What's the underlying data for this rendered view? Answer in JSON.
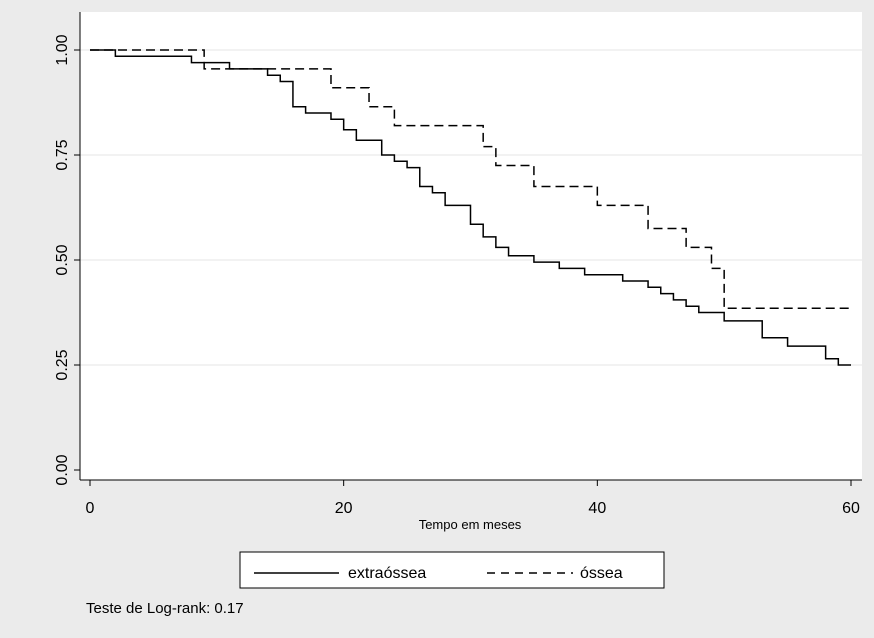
{
  "chart_data": {
    "type": "line",
    "title": "",
    "xlabel": "Tempo em meses",
    "ylabel": "",
    "xlim": [
      0,
      60
    ],
    "ylim": [
      0,
      1
    ],
    "x_ticks": [
      "0",
      "20",
      "40",
      "60"
    ],
    "y_ticks": [
      "0.00",
      "0.25",
      "0.50",
      "0.75",
      "1.00"
    ],
    "grid": "horizontal",
    "legend_position": "bottom",
    "series": [
      {
        "name": "extraóssea",
        "line_style": "solid",
        "points": [
          [
            0,
            1.0
          ],
          [
            2,
            1.0
          ],
          [
            2,
            0.985
          ],
          [
            8,
            0.985
          ],
          [
            8,
            0.97
          ],
          [
            11,
            0.97
          ],
          [
            11,
            0.955
          ],
          [
            14,
            0.955
          ],
          [
            14,
            0.94
          ],
          [
            15,
            0.94
          ],
          [
            15,
            0.925
          ],
          [
            16,
            0.925
          ],
          [
            16,
            0.865
          ],
          [
            17,
            0.865
          ],
          [
            17,
            0.85
          ],
          [
            19,
            0.85
          ],
          [
            19,
            0.835
          ],
          [
            20,
            0.835
          ],
          [
            20,
            0.81
          ],
          [
            21,
            0.81
          ],
          [
            21,
            0.785
          ],
          [
            23,
            0.785
          ],
          [
            23,
            0.75
          ],
          [
            24,
            0.75
          ],
          [
            24,
            0.735
          ],
          [
            25,
            0.735
          ],
          [
            25,
            0.72
          ],
          [
            26,
            0.72
          ],
          [
            26,
            0.675
          ],
          [
            27,
            0.675
          ],
          [
            27,
            0.66
          ],
          [
            28,
            0.66
          ],
          [
            28,
            0.63
          ],
          [
            30,
            0.63
          ],
          [
            30,
            0.585
          ],
          [
            31,
            0.585
          ],
          [
            31,
            0.555
          ],
          [
            32,
            0.555
          ],
          [
            32,
            0.53
          ],
          [
            33,
            0.53
          ],
          [
            33,
            0.51
          ],
          [
            35,
            0.51
          ],
          [
            35,
            0.495
          ],
          [
            37,
            0.495
          ],
          [
            37,
            0.48
          ],
          [
            39,
            0.48
          ],
          [
            39,
            0.465
          ],
          [
            42,
            0.465
          ],
          [
            42,
            0.45
          ],
          [
            44,
            0.45
          ],
          [
            44,
            0.435
          ],
          [
            45,
            0.435
          ],
          [
            45,
            0.42
          ],
          [
            46,
            0.42
          ],
          [
            46,
            0.405
          ],
          [
            47,
            0.405
          ],
          [
            47,
            0.39
          ],
          [
            48,
            0.39
          ],
          [
            48,
            0.375
          ],
          [
            50,
            0.375
          ],
          [
            50,
            0.355
          ],
          [
            53,
            0.355
          ],
          [
            53,
            0.315
          ],
          [
            55,
            0.315
          ],
          [
            55,
            0.295
          ],
          [
            58,
            0.295
          ],
          [
            58,
            0.265
          ],
          [
            59,
            0.265
          ],
          [
            59,
            0.25
          ],
          [
            60,
            0.25
          ]
        ]
      },
      {
        "name": "óssea",
        "line_style": "dashed",
        "points": [
          [
            0,
            1.0
          ],
          [
            9,
            1.0
          ],
          [
            9,
            0.955
          ],
          [
            19,
            0.955
          ],
          [
            19,
            0.91
          ],
          [
            22,
            0.91
          ],
          [
            22,
            0.865
          ],
          [
            24,
            0.865
          ],
          [
            24,
            0.82
          ],
          [
            31,
            0.82
          ],
          [
            31,
            0.77
          ],
          [
            32,
            0.77
          ],
          [
            32,
            0.725
          ],
          [
            35,
            0.725
          ],
          [
            35,
            0.675
          ],
          [
            40,
            0.675
          ],
          [
            40,
            0.63
          ],
          [
            44,
            0.63
          ],
          [
            44,
            0.575
          ],
          [
            47,
            0.575
          ],
          [
            47,
            0.53
          ],
          [
            49,
            0.53
          ],
          [
            49,
            0.48
          ],
          [
            50,
            0.48
          ],
          [
            50,
            0.385
          ],
          [
            60,
            0.385
          ]
        ]
      }
    ],
    "annotation": "Teste de Log-rank: 0.17"
  }
}
